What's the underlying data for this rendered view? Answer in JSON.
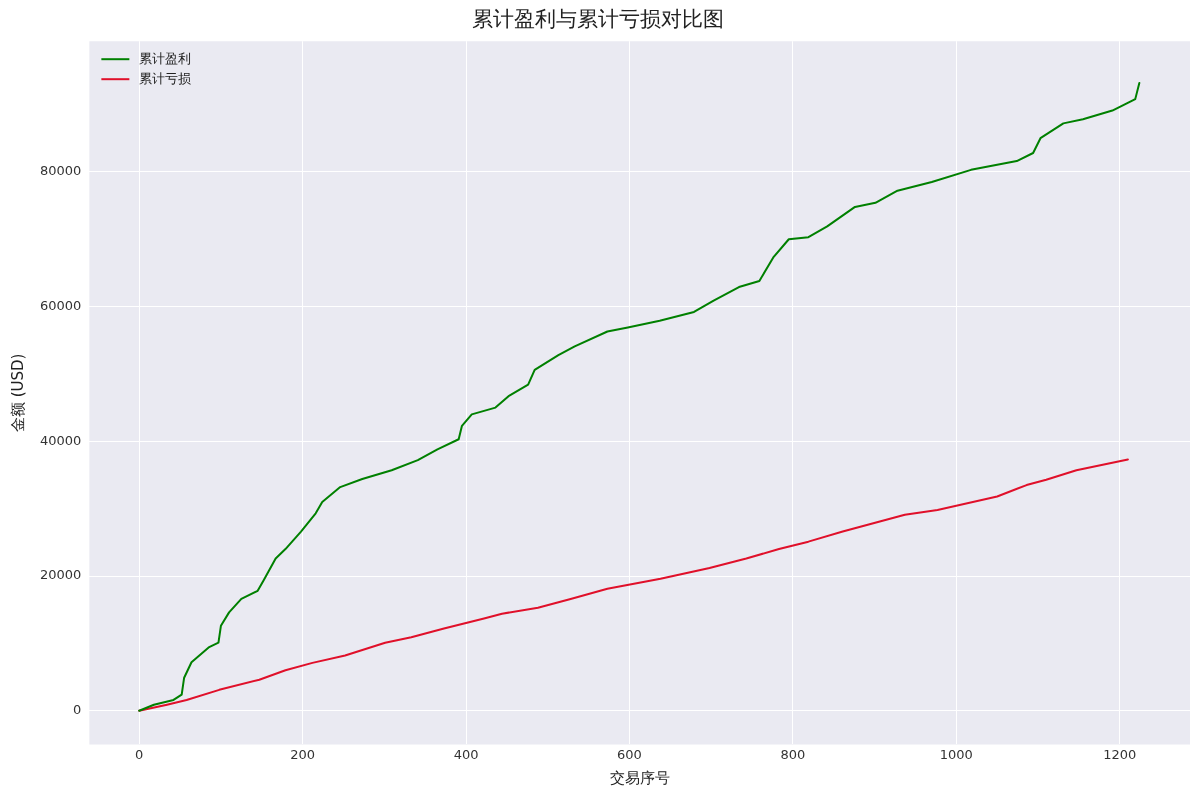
{
  "chart_data": {
    "type": "line",
    "title": "累计盈利与累计亏损对比图",
    "xlabel": "交易序号",
    "ylabel": "金额 (USD)",
    "xlim": [
      -61,
      1286
    ],
    "ylim": [
      -5000,
      99400
    ],
    "xticks": [
      0,
      200,
      400,
      600,
      800,
      1000,
      1200
    ],
    "yticks": [
      0,
      20000,
      40000,
      60000,
      80000
    ],
    "grid": true,
    "legend": "top left",
    "marker": "none",
    "line_style": "solid",
    "series": [
      {
        "name": "累计盈利",
        "color": "#008000",
        "x": [
          0,
          18,
          42,
          52,
          55,
          64,
          85,
          97,
          100,
          110,
          125,
          145,
          152,
          167,
          179,
          198,
          216,
          224,
          246,
          273,
          309,
          341,
          365,
          391,
          395,
          407,
          436,
          452,
          476,
          484,
          513,
          533,
          573,
          598,
          637,
          679,
          703,
          734,
          759,
          776,
          795,
          819,
          842,
          876,
          901,
          928,
          970,
          1018,
          1074,
          1094,
          1103,
          1131,
          1155,
          1191,
          1219,
          1224
        ],
        "values": [
          0,
          880,
          1600,
          2400,
          4900,
          7200,
          9400,
          10100,
          12600,
          14600,
          16600,
          17800,
          19300,
          22600,
          24000,
          26600,
          29300,
          31000,
          33200,
          34400,
          35700,
          37200,
          38800,
          40300,
          42300,
          44000,
          45000,
          46700,
          48400,
          50600,
          52800,
          54100,
          56300,
          56900,
          57900,
          59200,
          60900,
          62900,
          63800,
          67300,
          70000,
          70300,
          71900,
          74800,
          75400,
          77200,
          78500,
          80300,
          81600,
          82800,
          85000,
          87200,
          87800,
          89100,
          90800,
          93200
        ]
      },
      {
        "name": "累计亏损",
        "color": "#e0102a",
        "x": [
          0,
          34,
          58,
          98,
          147,
          179,
          212,
          252,
          301,
          333,
          373,
          422,
          444,
          488,
          528,
          573,
          638,
          698,
          743,
          783,
          819,
          861,
          937,
          977,
          1050,
          1086,
          1110,
          1147,
          1210
        ],
        "values": [
          0,
          900,
          1600,
          3100,
          4600,
          6000,
          7100,
          8200,
          10100,
          10900,
          12200,
          13700,
          14400,
          15300,
          16600,
          18100,
          19600,
          21200,
          22600,
          24000,
          25100,
          26600,
          29100,
          29800,
          31800,
          33500,
          34300,
          35700,
          37300
        ]
      }
    ]
  }
}
